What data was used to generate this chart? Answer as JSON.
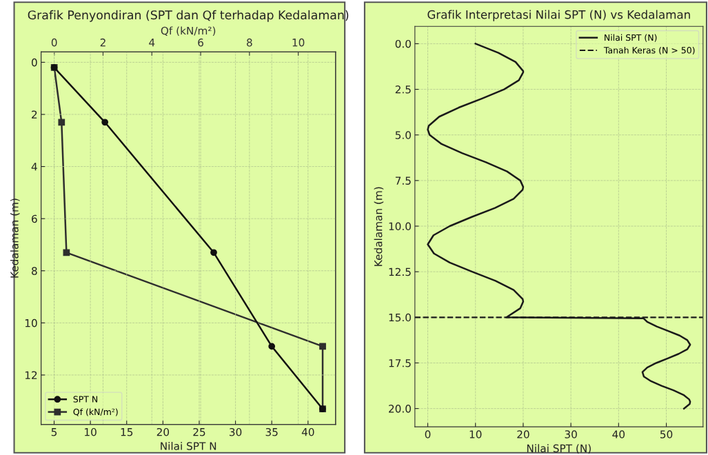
{
  "chart_data": [
    {
      "type": "line",
      "title": "Grafik Penyondiran (SPT dan Qf terhadap Kedalaman)",
      "xlabel": "Nilai SPT N",
      "x2label": "Qf (kN/m²)",
      "ylabel": "Kedalaman (m)",
      "xlim": [
        3.2,
        43.8
      ],
      "xticks": [
        5,
        10,
        15,
        20,
        25,
        30,
        35,
        40
      ],
      "x2lim": [
        -0.54,
        11.53
      ],
      "x2ticks": [
        0,
        2,
        4,
        6,
        8,
        10
      ],
      "ylim": [
        13.9,
        -0.4
      ],
      "yticks": [
        0,
        2,
        4,
        6,
        8,
        10,
        12
      ],
      "grid": true,
      "legend": "bottom left",
      "line_style": "solid",
      "series": [
        {
          "name": "SPT N",
          "color": "#111111",
          "marker": "circle",
          "x": [
            5,
            12,
            27,
            35,
            42
          ],
          "values": [
            0.2,
            2.3,
            7.3,
            10.9,
            13.3
          ]
        },
        {
          "name": "Qf (kN/m²)",
          "color": "#2e2e2e",
          "marker": "square",
          "axis": "x2",
          "x": [
            0,
            0.3,
            0.5,
            11,
            11
          ],
          "values": [
            0.2,
            2.3,
            7.3,
            10.9,
            13.3
          ]
        }
      ]
    },
    {
      "type": "line",
      "title": "Grafik Interpretasi Nilai SPT (N) vs Kedalaman",
      "xlabel": "Nilai SPT (N)",
      "ylabel": "Kedalaman (m)",
      "xlim": [
        -2.7,
        57.7
      ],
      "xticks": [
        0,
        10,
        20,
        30,
        40,
        50
      ],
      "ylim": [
        21.0,
        -0.95
      ],
      "yticks": [
        {
          "value": 0,
          "label": "0.0"
        },
        {
          "value": 2.5,
          "label": "2.5"
        },
        {
          "value": 5,
          "label": "5.0"
        },
        {
          "value": 7.5,
          "label": "7.5"
        },
        {
          "value": 10,
          "label": "10.0"
        },
        {
          "value": 12.5,
          "label": "12.5"
        },
        {
          "value": 15,
          "label": "15.0"
        },
        {
          "value": 17.5,
          "label": "17.5"
        },
        {
          "value": 20,
          "label": "20.0"
        }
      ],
      "grid": true,
      "legend": "top right",
      "marker": "none",
      "line_style": "solid",
      "series": [
        {
          "name": "Nilai SPT (N)",
          "color": "#1a1a1a",
          "x": [
            10,
            14.8,
            18.4,
            20.0,
            20,
            19.1,
            16.0,
            11.4,
            6.5,
            2.4,
            0.2,
            0,
            0.4,
            2.9,
            7.2,
            12.2,
            16.6,
            19.4,
            20,
            19.9,
            18.0,
            14.1,
            9.2,
            4.6,
            1.2,
            0,
            1.3,
            4.6,
            9.3,
            14.2,
            18.0,
            19.9,
            20,
            19.4,
            16.5,
            45.2,
            46.0,
            48.0,
            50.4,
            52.8,
            54.4,
            55.0,
            54.4,
            52.6,
            50.3,
            47.9,
            46.0,
            45.0,
            45.3,
            46.8,
            49.0,
            51.5,
            53.6,
            54.8,
            55.0,
            54.9,
            53.7
          ],
          "values": [
            0,
            0.5,
            1.0,
            1.5,
            1.57,
            2.0,
            2.5,
            3.0,
            3.5,
            4.0,
            4.5,
            4.71,
            5.0,
            5.5,
            6.0,
            6.5,
            7.0,
            7.5,
            7.85,
            8.0,
            8.5,
            9.0,
            9.5,
            10.0,
            10.5,
            11.0,
            11.5,
            12.0,
            12.5,
            13.0,
            13.5,
            14.0,
            14.14,
            14.5,
            15.0,
            15.05,
            15.25,
            15.5,
            15.75,
            16.0,
            16.25,
            16.5,
            16.75,
            17.0,
            17.25,
            17.5,
            17.75,
            18.0,
            18.25,
            18.5,
            18.75,
            19.0,
            19.25,
            19.5,
            19.63,
            19.75,
            20.0
          ]
        }
      ],
      "ref_lines": [
        {
          "axis": "y",
          "value": 15,
          "label": "Tanah Keras (N > 50)",
          "color": "#1a1a1a",
          "line_style": "dashed"
        }
      ]
    }
  ]
}
